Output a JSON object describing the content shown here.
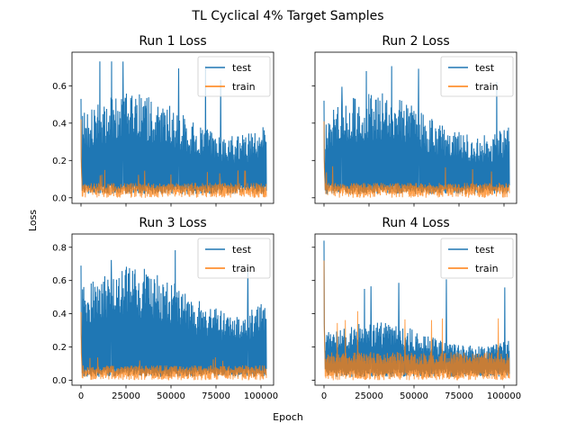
{
  "suptitle": "TL Cyclical 4% Target Samples",
  "xlabel": "Epoch",
  "ylabel": "Loss",
  "colors": {
    "test": "#1f77b4",
    "train": "#ff7f0e"
  },
  "chart_data": [
    {
      "type": "line",
      "title": "Run 1 Loss",
      "xlim": [
        -5000,
        107000
      ],
      "ylim": [
        -0.03,
        0.78
      ],
      "yticks": [
        0.0,
        0.2,
        0.4,
        0.6
      ],
      "xticks": [
        0,
        25000,
        50000,
        75000,
        100000
      ],
      "legend": "top-right",
      "series": [
        {
          "name": "test",
          "n_points": 103000,
          "initial_spike": 0.53,
          "typical_max": 0.45,
          "peak_max": 0.74,
          "typical_min": 0.02
        },
        {
          "name": "train",
          "n_points": 103000,
          "initial_spike": 0.42,
          "typical_max": 0.08,
          "peak_max": 0.15
        }
      ]
    },
    {
      "type": "line",
      "title": "Run 2 Loss",
      "xlim": [
        -5000,
        107000
      ],
      "ylim": [
        -0.03,
        0.78
      ],
      "yticks": [
        0.0,
        0.2,
        0.4,
        0.6
      ],
      "xticks": [
        0,
        25000,
        50000,
        75000,
        100000
      ],
      "legend": "top-right",
      "series": [
        {
          "name": "test",
          "n_points": 103000,
          "initial_spike": 0.52,
          "typical_max": 0.45,
          "peak_max": 0.74,
          "typical_min": 0.02
        },
        {
          "name": "train",
          "n_points": 103000,
          "initial_spike": 0.41,
          "typical_max": 0.08,
          "peak_max": 0.17
        }
      ]
    },
    {
      "type": "line",
      "title": "Run 3 Loss",
      "xlim": [
        -5000,
        107000
      ],
      "ylim": [
        -0.03,
        0.88
      ],
      "yticks": [
        0.0,
        0.2,
        0.4,
        0.6,
        0.8
      ],
      "xticks": [
        0,
        25000,
        50000,
        75000,
        100000
      ],
      "xticklabels": [
        "0",
        "25000",
        "50000",
        "75000",
        "100000"
      ],
      "legend": "top-right",
      "series": [
        {
          "name": "test",
          "n_points": 103000,
          "initial_spike": 0.69,
          "typical_max": 0.55,
          "peak_max": 0.84,
          "typical_min": 0.02
        },
        {
          "name": "train",
          "n_points": 103000,
          "initial_spike": 0.41,
          "typical_max": 0.09,
          "peak_max": 0.14
        }
      ]
    },
    {
      "type": "line",
      "title": "Run 4 Loss",
      "xlim": [
        -5000,
        107000
      ],
      "ylim": [
        -0.03,
        0.88
      ],
      "yticks": [
        0.0,
        0.2,
        0.4,
        0.6,
        0.8
      ],
      "xticks": [
        0,
        25000,
        50000,
        75000,
        100000
      ],
      "xticklabels": [
        "0",
        "25000",
        "50000",
        "75000",
        "100000"
      ],
      "legend": "top-right",
      "series": [
        {
          "name": "test",
          "n_points": 103000,
          "initial_spike": 0.84,
          "typical_max": 0.28,
          "peak_max": 0.64,
          "typical_min": 0.02
        },
        {
          "name": "train",
          "n_points": 103000,
          "initial_spike": 0.72,
          "typical_max": 0.17,
          "peak_max": 0.42
        }
      ]
    }
  ]
}
